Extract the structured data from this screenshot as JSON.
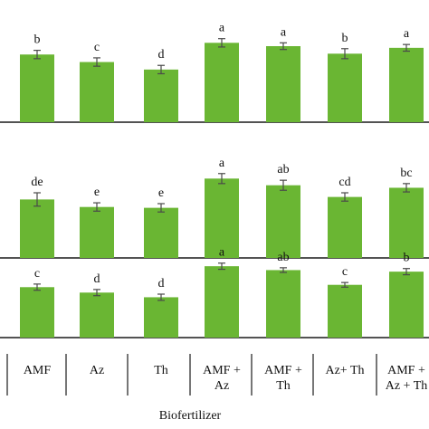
{
  "colors": {
    "bar": "#6ab633",
    "axis": "#1a1a1a",
    "error_bar": "#4a4a4a"
  },
  "chart_data": [
    {
      "type": "bar",
      "categories": [
        "AMF",
        "Az",
        "Th",
        "AMF + Az",
        "AMF + Th",
        "Az+ Th",
        "AMF + Az + Th"
      ],
      "values": [
        0.81,
        0.72,
        0.63,
        0.95,
        0.91,
        0.82,
        0.89
      ],
      "errors": [
        0.05,
        0.05,
        0.05,
        0.05,
        0.04,
        0.06,
        0.04
      ],
      "letters": [
        "b",
        "c",
        "d",
        "a",
        "a",
        "b",
        "a"
      ],
      "ylim": [
        0,
        1.3
      ],
      "value_scale": "unlabeled, estimated"
    },
    {
      "type": "bar",
      "categories": [
        "AMF",
        "Az",
        "Th",
        "AMF + Az",
        "AMF + Th",
        "Az+ Th",
        "AMF + Az + Th"
      ],
      "values": [
        0.7,
        0.61,
        0.6,
        0.95,
        0.87,
        0.73,
        0.84
      ],
      "errors": [
        0.08,
        0.05,
        0.05,
        0.06,
        0.06,
        0.05,
        0.05
      ],
      "letters": [
        "de",
        "e",
        "e",
        "a",
        "ab",
        "cd",
        "bc"
      ],
      "ylim": [
        0,
        1.3
      ],
      "value_scale": "unlabeled, estimated"
    },
    {
      "type": "bar",
      "categories": [
        "AMF",
        "Az",
        "Th",
        "AMF + Az",
        "AMF + Th",
        "Az+ Th",
        "AMF + Az + Th"
      ],
      "values": [
        0.65,
        0.58,
        0.52,
        0.92,
        0.87,
        0.68,
        0.85
      ],
      "errors": [
        0.04,
        0.04,
        0.04,
        0.04,
        0.03,
        0.03,
        0.04
      ],
      "letters": [
        "c",
        "d",
        "d",
        "a",
        "ab",
        "c",
        "b"
      ],
      "ylim": [
        0,
        1.4
      ],
      "value_scale": "unlabeled, estimated"
    }
  ],
  "x_axis": {
    "title": "Biofertilizer",
    "labels": [
      [
        "AMF"
      ],
      [
        "Az"
      ],
      [
        "Th"
      ],
      [
        "AMF +",
        "Az"
      ],
      [
        "AMF +",
        "Th"
      ],
      [
        "Az+ Th"
      ],
      [
        "AMF +",
        "Az + Th"
      ]
    ]
  }
}
